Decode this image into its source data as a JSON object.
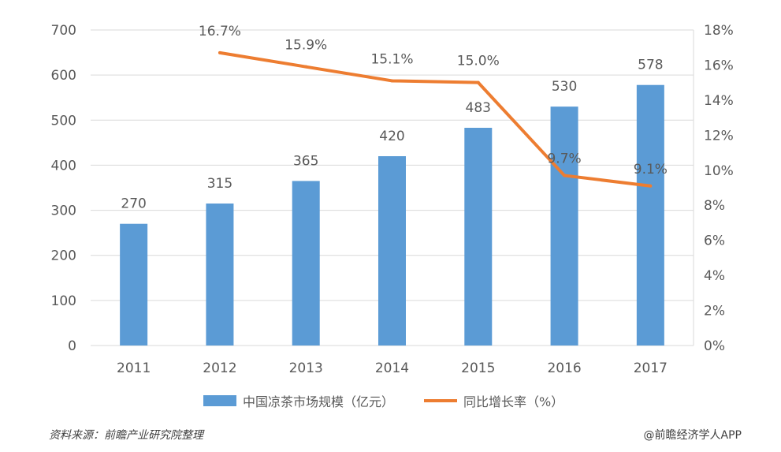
{
  "chart_data": {
    "type": "bar",
    "categories": [
      "2011",
      "2012",
      "2013",
      "2014",
      "2015",
      "2016",
      "2017"
    ],
    "series": [
      {
        "name": "中国凉茶市场规模（亿元）",
        "kind": "bar",
        "axis": "left",
        "values": [
          270,
          315,
          365,
          420,
          483,
          530,
          578
        ],
        "labels": [
          "270",
          "315",
          "365",
          "420",
          "483",
          "530",
          "578"
        ]
      },
      {
        "name": "同比增长率（%）",
        "kind": "line",
        "axis": "right",
        "values": [
          null,
          16.7,
          15.9,
          15.1,
          15.0,
          9.7,
          9.1
        ],
        "labels": [
          "",
          "16.7%",
          "15.9%",
          "15.1%",
          "15.0%",
          "9.7%",
          "9.1%"
        ]
      }
    ],
    "y_left": {
      "min": 0,
      "max": 700,
      "ticks": [
        "0",
        "100",
        "200",
        "300",
        "400",
        "500",
        "600",
        "700"
      ]
    },
    "y_right": {
      "min": 0,
      "max": 18,
      "ticks": [
        "0%",
        "2%",
        "4%",
        "6%",
        "8%",
        "10%",
        "12%",
        "14%",
        "16%",
        "18%"
      ]
    },
    "grid": "horizontal",
    "legend_position": "bottom",
    "colors": {
      "bar": "#5b9bd5",
      "line": "#ed7d31",
      "grid": "#d9d9d9"
    }
  },
  "legend": {
    "bar_label": "中国凉茶市场规模（亿元）",
    "line_label": "同比增长率（%）"
  },
  "footer": {
    "source": "资料来源：前瞻产业研究院整理",
    "credit": "@前瞻经济学人APP"
  }
}
